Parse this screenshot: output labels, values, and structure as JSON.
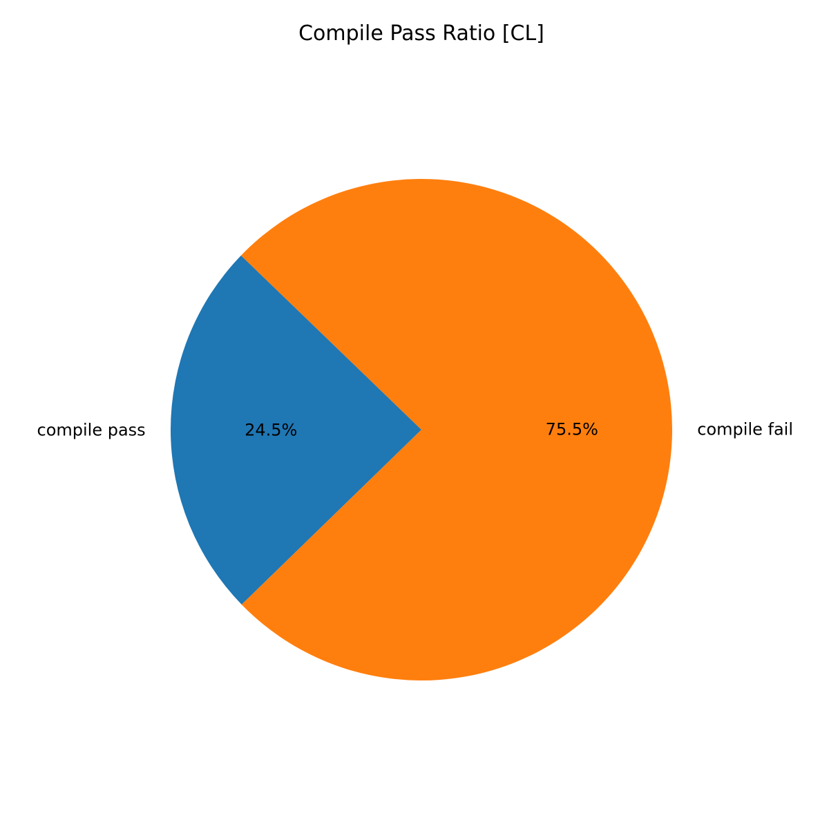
{
  "chart_data": {
    "type": "pie",
    "title": "Compile Pass Ratio [CL]",
    "slices": [
      {
        "label": "compile pass",
        "value": 24.5,
        "pct_label": "24.5%",
        "color": "#1f77b4"
      },
      {
        "label": "compile fail",
        "value": 75.5,
        "pct_label": "75.5%",
        "color": "#ff7f0e"
      }
    ],
    "start_angle_deg": 136,
    "direction": "counterclockwise",
    "legend": "none"
  }
}
